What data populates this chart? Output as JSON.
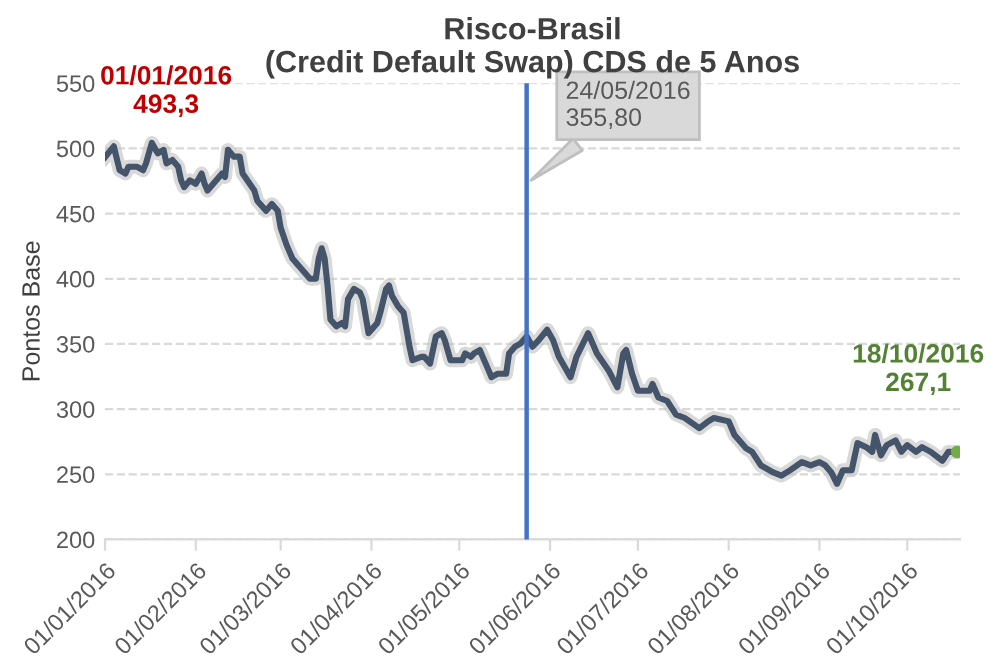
{
  "chart_data": {
    "type": "line",
    "title": "Risco-Brasil\n(Credit Default Swap) CDS de 5 Anos",
    "ylabel": "Pontos Base",
    "ylim": [
      200,
      550
    ],
    "yticks": [
      200,
      250,
      300,
      350,
      400,
      450,
      500,
      550
    ],
    "xlim": [
      "2016-01-01",
      "2016-10-19"
    ],
    "xticks": [
      {
        "value": "2016-01-01",
        "label": "01/01/2016"
      },
      {
        "value": "2016-02-01",
        "label": "01/02/2016"
      },
      {
        "value": "2016-03-01",
        "label": "01/03/2016"
      },
      {
        "value": "2016-04-01",
        "label": "01/04/2016"
      },
      {
        "value": "2016-05-01",
        "label": "01/05/2016"
      },
      {
        "value": "2016-06-01",
        "label": "01/06/2016"
      },
      {
        "value": "2016-07-01",
        "label": "01/07/2016"
      },
      {
        "value": "2016-08-01",
        "label": "01/08/2016"
      },
      {
        "value": "2016-09-01",
        "label": "01/09/2016"
      },
      {
        "value": "2016-10-01",
        "label": "01/10/2016"
      }
    ],
    "grid": "y",
    "line_style": "solid",
    "x": [
      "2016-01-01",
      "2016-01-04",
      "2016-01-06",
      "2016-01-08",
      "2016-01-09",
      "2016-01-12",
      "2016-01-14",
      "2016-01-15",
      "2016-01-17",
      "2016-01-19",
      "2016-01-21",
      "2016-01-22",
      "2016-01-24",
      "2016-01-26",
      "2016-01-27",
      "2016-01-28",
      "2016-01-30",
      "2016-02-01",
      "2016-02-03",
      "2016-02-04",
      "2016-02-05",
      "2016-02-08",
      "2016-02-10",
      "2016-02-11",
      "2016-02-12",
      "2016-02-14",
      "2016-02-16",
      "2016-02-17",
      "2016-02-21",
      "2016-02-22",
      "2016-02-25",
      "2016-02-27",
      "2016-02-29",
      "2016-03-01",
      "2016-03-03",
      "2016-03-05",
      "2016-03-07",
      "2016-03-09",
      "2016-03-11",
      "2016-03-13",
      "2016-03-14",
      "2016-03-15",
      "2016-03-16",
      "2016-03-17",
      "2016-03-18",
      "2016-03-20",
      "2016-03-22",
      "2016-03-23",
      "2016-03-24",
      "2016-03-26",
      "2016-03-28",
      "2016-03-29",
      "2016-03-31",
      "2016-04-01",
      "2016-04-03",
      "2016-04-04",
      "2016-04-06",
      "2016-04-07",
      "2016-04-08",
      "2016-04-10",
      "2016-04-12",
      "2016-04-14",
      "2016-04-15",
      "2016-04-18",
      "2016-04-19",
      "2016-04-21",
      "2016-04-23",
      "2016-04-25",
      "2016-04-26",
      "2016-04-28",
      "2016-04-30",
      "2016-05-02",
      "2016-05-03",
      "2016-05-05",
      "2016-05-06",
      "2016-05-08",
      "2016-05-09",
      "2016-05-11",
      "2016-05-12",
      "2016-05-14",
      "2016-05-17",
      "2016-05-18",
      "2016-05-20",
      "2016-05-22",
      "2016-05-24",
      "2016-05-26",
      "2016-05-28",
      "2016-05-31",
      "2016-06-02",
      "2016-06-04",
      "2016-06-08",
      "2016-06-10",
      "2016-06-14",
      "2016-06-17",
      "2016-06-21",
      "2016-06-24",
      "2016-06-26",
      "2016-06-27",
      "2016-06-29",
      "2016-07-01",
      "2016-07-05",
      "2016-07-06",
      "2016-07-08",
      "2016-07-11",
      "2016-07-14",
      "2016-07-17",
      "2016-07-22",
      "2016-07-25",
      "2016-07-27",
      "2016-08-01",
      "2016-08-03",
      "2016-08-07",
      "2016-08-09",
      "2016-08-12",
      "2016-08-16",
      "2016-08-19",
      "2016-08-22",
      "2016-08-26",
      "2016-08-29",
      "2016-09-01",
      "2016-09-03",
      "2016-09-05",
      "2016-09-07",
      "2016-09-09",
      "2016-09-12",
      "2016-09-14",
      "2016-09-17",
      "2016-09-19",
      "2016-09-20",
      "2016-09-22",
      "2016-09-24",
      "2016-09-27",
      "2016-09-29",
      "2016-10-01",
      "2016-10-04",
      "2016-10-06",
      "2016-10-09",
      "2016-10-13",
      "2016-10-15",
      "2016-10-18"
    ],
    "series": [
      {
        "color": "#44546a",
        "values": [
          493.3,
          501.6,
          483.3,
          480.7,
          485.9,
          485.9,
          483.3,
          488.5,
          504.2,
          496.3,
          498.9,
          488.5,
          491.1,
          485.9,
          475.5,
          470.3,
          475.5,
          472.9,
          480.7,
          472.9,
          467.7,
          475.5,
          480.7,
          478.1,
          498.9,
          493.7,
          493.7,
          480.7,
          467.7,
          459.9,
          452.1,
          457.3,
          452.1,
          439.1,
          426.0,
          415.6,
          410.4,
          405.2,
          400.0,
          400.0,
          415.6,
          423.4,
          415.6,
          394.8,
          368.7,
          363.5,
          366.1,
          363.5,
          384.4,
          392.2,
          389.6,
          384.4,
          358.3,
          360.9,
          366.1,
          374.0,
          392.2,
          394.8,
          387.0,
          379.2,
          374.0,
          347.9,
          337.5,
          340.1,
          340.1,
          334.9,
          355.7,
          358.3,
          353.1,
          337.5,
          337.5,
          337.5,
          342.7,
          340.1,
          342.7,
          345.3,
          340.1,
          329.7,
          324.5,
          327.1,
          327.1,
          342.7,
          347.9,
          350.5,
          355.8,
          347.9,
          352.5,
          360.9,
          353.1,
          340.1,
          324.5,
          340.1,
          358.3,
          342.7,
          329.7,
          316.7,
          342.7,
          345.3,
          327.1,
          314.1,
          314.1,
          319.3,
          308.9,
          306.2,
          295.8,
          293.2,
          285.4,
          290.6,
          293.2,
          290.6,
          280.2,
          269.8,
          267.2,
          256.8,
          251.6,
          249.0,
          253.1,
          259.4,
          256.8,
          259.4,
          256.8,
          251.6,
          242.7,
          253.1,
          253.1,
          273.9,
          270.8,
          267.2,
          280.2,
          264.6,
          272.4,
          276.0,
          267.2,
          272.4,
          267.2,
          270.8,
          267.2,
          260.4,
          267.2,
          267.1
        ]
      }
    ],
    "ref_lines": [
      {
        "axis": "x",
        "value": "2016-05-24",
        "label": "24/05/2016\n355,80",
        "color": "#4472c4"
      }
    ],
    "annotations": [
      {
        "text": "01/01/2016\n493,3",
        "x": "2016-01-01",
        "y": 493.3
      },
      {
        "text": "18/10/2016\n267,1",
        "x": "2016-10-18",
        "y": 267.1
      }
    ]
  }
}
